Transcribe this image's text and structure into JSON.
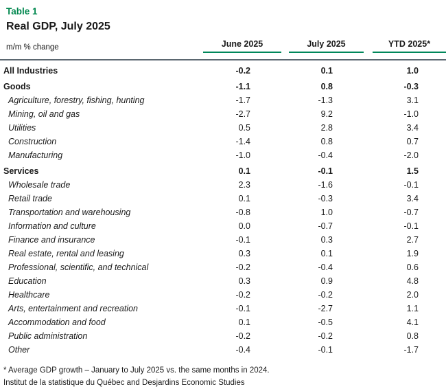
{
  "page": {
    "table_label": "Table 1",
    "title": "Real GDP, July 2025"
  },
  "table": {
    "unit_label": "m/m % change",
    "columns": {
      "june": "June 2025",
      "july": "July 2025",
      "ytd": "YTD 2025*"
    },
    "rows": [
      {
        "label": "All Industries",
        "style": "section",
        "values": [
          "-0.2",
          "0.1",
          "1.0"
        ]
      },
      {
        "label": "Goods",
        "style": "section",
        "values": [
          "-1.1",
          "0.8",
          "-0.3"
        ]
      },
      {
        "label": "Agriculture, forestry, fishing, hunting",
        "style": "sub",
        "values": [
          "-1.7",
          "-1.3",
          "3.1"
        ]
      },
      {
        "label": "Mining, oil and gas",
        "style": "sub",
        "values": [
          "-2.7",
          "9.2",
          "-1.0"
        ]
      },
      {
        "label": "Utilities",
        "style": "sub",
        "values": [
          "0.5",
          "2.8",
          "3.4"
        ]
      },
      {
        "label": "Construction",
        "style": "sub",
        "values": [
          "-1.4",
          "0.8",
          "0.7"
        ]
      },
      {
        "label": "Manufacturing",
        "style": "sub",
        "values": [
          "-1.0",
          "-0.4",
          "-2.0"
        ]
      },
      {
        "label": "Services",
        "style": "section",
        "values": [
          "0.1",
          "-0.1",
          "1.5"
        ]
      },
      {
        "label": "Wholesale trade",
        "style": "sub",
        "values": [
          "2.3",
          "-1.6",
          "-0.1"
        ]
      },
      {
        "label": "Retail trade",
        "style": "sub",
        "values": [
          "0.1",
          "-0.3",
          "3.4"
        ]
      },
      {
        "label": "Transportation and warehousing",
        "style": "sub",
        "values": [
          "-0.8",
          "1.0",
          "-0.7"
        ]
      },
      {
        "label": "Information and culture",
        "style": "sub",
        "values": [
          "0.0",
          "-0.7",
          "-0.1"
        ]
      },
      {
        "label": "Finance and insurance",
        "style": "sub",
        "values": [
          "-0.1",
          "0.3",
          "2.7"
        ]
      },
      {
        "label": "Real estate, rental and leasing",
        "style": "sub",
        "values": [
          "0.3",
          "0.1",
          "1.9"
        ]
      },
      {
        "label": "Professional, scientific, and technical",
        "style": "sub",
        "values": [
          "-0.2",
          "-0.4",
          "0.6"
        ]
      },
      {
        "label": "Education",
        "style": "sub",
        "values": [
          "0.3",
          "0.9",
          "4.8"
        ]
      },
      {
        "label": "Healthcare",
        "style": "sub",
        "values": [
          "-0.2",
          "-0.2",
          "2.0"
        ]
      },
      {
        "label": "Arts, entertainment and recreation",
        "style": "sub",
        "values": [
          "-0.1",
          "-2.7",
          "1.1"
        ]
      },
      {
        "label": "Accommodation and food",
        "style": "sub",
        "values": [
          "0.1",
          "-0.5",
          "4.1"
        ]
      },
      {
        "label": "Public administration",
        "style": "sub",
        "values": [
          "-0.2",
          "-0.2",
          "0.8"
        ]
      },
      {
        "label": "Other",
        "style": "sub",
        "values": [
          "-0.4",
          "-0.1",
          "-1.7"
        ]
      }
    ]
  },
  "footnotes": {
    "asterisk_note": "* Average GDP growth – January to July 2025 vs. the same months in 2024.",
    "source": "Institut de la statistique du Québec and Desjardins Economic Studies"
  },
  "colors": {
    "accent_green": "#00874E",
    "underline_green": "#00875A",
    "rule_gray": "#5B6770"
  }
}
